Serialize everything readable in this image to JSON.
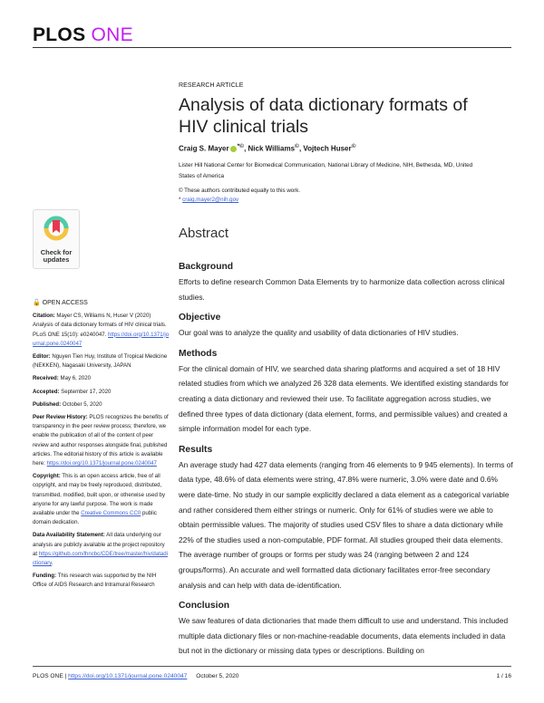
{
  "journal": {
    "name_part1": "PLOS",
    "name_part2": "ONE",
    "brand_color": "#c21ef2"
  },
  "article_type": "RESEARCH ARTICLE",
  "title": "Analysis of data dictionary formats of HIV clinical trials",
  "authors": [
    {
      "name": "Craig S. Mayer",
      "marks": "*©"
    },
    {
      "name": "Nick Williams",
      "marks": "©"
    },
    {
      "name": "Vojtech Huser",
      "marks": "©"
    }
  ],
  "affiliation": "Lister Hill National Center for Biomedical Communication, National Library of Medicine, NIH, Bethesda, MD, United States of America",
  "notes": {
    "equal": "© These authors contributed equally to this work.",
    "email_prefix": "* ",
    "email": "craig.mayer2@nih.gov"
  },
  "check_updates": "Check for updates",
  "sidebar": {
    "open_access": "OPEN ACCESS",
    "citation_label": "Citation:",
    "citation_text": " Mayer CS, Williams N, Huser V (2020) Analysis of data dictionary formats of HIV clinical trials. PLoS ONE 15(10): e0240047. ",
    "citation_link": "https://doi.org/10.1371/journal.pone.0240047",
    "editor_label": "Editor:",
    "editor_text": " Nguyen Tien Huy, Institute of Tropical Medicine (NEKKEN), Nagasaki University, JAPAN",
    "received_label": "Received:",
    "received": " May 6, 2020",
    "accepted_label": "Accepted:",
    "accepted": " September 17, 2020",
    "published_label": "Published:",
    "published": " October 5, 2020",
    "peer_label": "Peer Review History:",
    "peer_text": " PLOS recognizes the benefits of transparency in the peer review process; therefore, we enable the publication of all of the content of peer review and author responses alongside final, published articles. The editorial history of this article is available here: ",
    "peer_link": "https://doi.org/10.1371/journal.pone.0240047",
    "copyright_label": "Copyright:",
    "copyright_text": " This is an open access article, free of all copyright, and may be freely reproduced, distributed, transmitted, modified, built upon, or otherwise used by anyone for any lawful purpose. The work is made available under the ",
    "copyright_link": "Creative Commons CC0",
    "copyright_end": " public domain dedication.",
    "data_label": "Data Availability Statement:",
    "data_text": " All data underlying our analysis are publicly available at the project repository at ",
    "data_link": "https://github.com/lhncbc/CDE/tree/master/hiv/datadictionary",
    "data_end": ".",
    "funding_label": "Funding:",
    "funding_text": " This research was supported by the NIH Office of AIDS Research and Intramural Research"
  },
  "abstract": {
    "heading": "Abstract",
    "sections": [
      {
        "heading": "Background",
        "text": "Efforts to define research Common Data Elements try to harmonize data collection across clinical studies."
      },
      {
        "heading": "Objective",
        "text": "Our goal was to analyze the quality and usability of data dictionaries of HIV studies."
      },
      {
        "heading": "Methods",
        "text": "For the clinical domain of HIV, we searched data sharing platforms and acquired a set of 18 HIV related studies from which we analyzed 26 328 data elements. We identified existing standards for creating a data dictionary and reviewed their use. To facilitate aggregation across studies, we defined three types of data dictionary (data element, forms, and permissible values) and created a simple information model for each type."
      },
      {
        "heading": "Results",
        "text": "An average study had 427 data elements (ranging from 46 elements to 9 945 elements). In terms of data type, 48.6% of data elements were string, 47.8% were numeric, 3.0% were date and 0.6% were date-time. No study in our sample explicitly declared a data element as a categorical variable and rather considered them either strings or numeric. Only for 61% of studies were we able to obtain permissible values. The majority of studies used CSV files to share a data dictionary while 22% of the studies used a non-computable, PDF format. All studies grouped their data elements. The average number of groups or forms per study was 24 (ranging between 2 and 124 groups/forms). An accurate and well formatted data dictionary facilitates error-free secondary analysis and can help with data de-identification."
      },
      {
        "heading": "Conclusion",
        "text": "We saw features of data dictionaries that made them difficult to use and understand. This included multiple data dictionary files or non-machine-readable documents, data elements included in data but not in the dictionary or missing data types or descriptions. Building on"
      }
    ]
  },
  "footer": {
    "journal": "PLOS ONE | ",
    "doi": "https://doi.org/10.1371/journal.pone.0240047",
    "date": "October 5, 2020",
    "page": "1 / 16"
  }
}
